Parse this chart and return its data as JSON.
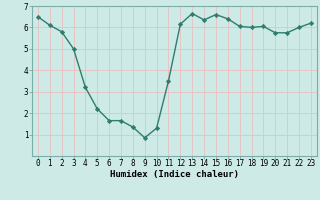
{
  "x": [
    0,
    1,
    2,
    3,
    4,
    5,
    6,
    7,
    8,
    9,
    10,
    11,
    12,
    13,
    14,
    15,
    16,
    17,
    18,
    19,
    20,
    21,
    22,
    23
  ],
  "y": [
    6.5,
    6.1,
    5.8,
    5.0,
    3.2,
    2.2,
    1.65,
    1.65,
    1.35,
    0.85,
    1.3,
    3.5,
    6.15,
    6.65,
    6.35,
    6.6,
    6.4,
    6.05,
    6.0,
    6.05,
    5.75,
    5.75,
    6.0,
    6.2
  ],
  "line_color": "#2e7d6e",
  "marker": "D",
  "marker_size": 2.2,
  "bg_color": "#ceeae7",
  "grid_color": "#f0fafa",
  "xlabel": "Humidex (Indice chaleur)",
  "xlim": [
    -0.5,
    23.5
  ],
  "ylim": [
    0,
    7
  ],
  "yticks": [
    1,
    2,
    3,
    4,
    5,
    6,
    7
  ],
  "xticks": [
    0,
    1,
    2,
    3,
    4,
    5,
    6,
    7,
    8,
    9,
    10,
    11,
    12,
    13,
    14,
    15,
    16,
    17,
    18,
    19,
    20,
    21,
    22,
    23
  ],
  "xlabel_fontsize": 6.5,
  "tick_fontsize": 5.5,
  "line_width": 1.0,
  "spine_color": "#7aada8"
}
